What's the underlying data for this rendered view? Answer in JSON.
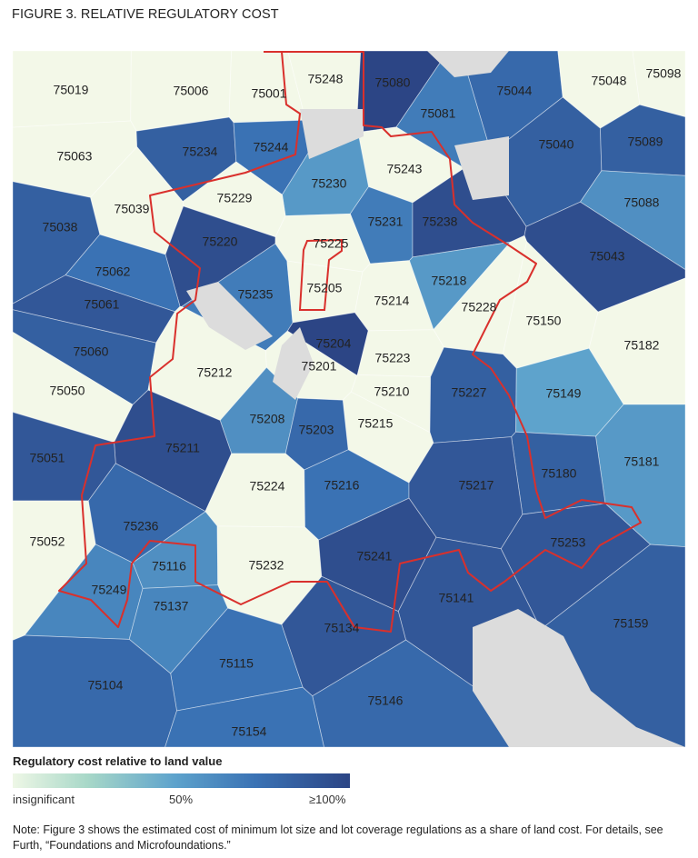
{
  "title": "FIGURE 3. RELATIVE REGULATORY COST",
  "colors": {
    "insignificant": "#f3f8e8",
    "mid": "#5ea3cc",
    "max": "#2c4585",
    "boundary": "#d9302c",
    "unmapped": "#dcdcdc"
  },
  "zips": [
    {
      "zip": "75019",
      "level": 0
    },
    {
      "zip": "75006",
      "level": 0
    },
    {
      "zip": "75001",
      "level": 0
    },
    {
      "zip": "75248",
      "level": 0
    },
    {
      "zip": "75080",
      "level": 1
    },
    {
      "zip": "75044",
      "level": 0.8
    },
    {
      "zip": "75048",
      "level": 0
    },
    {
      "zip": "75098",
      "level": 0
    },
    {
      "zip": "75081",
      "level": 0.7
    },
    {
      "zip": "75040",
      "level": 0.85
    },
    {
      "zip": "75089",
      "level": 0.85
    },
    {
      "zip": "75063",
      "level": 0
    },
    {
      "zip": "75234",
      "level": 0.85
    },
    {
      "zip": "75244",
      "level": 0.75
    },
    {
      "zip": "75243",
      "level": 0
    },
    {
      "zip": "75230",
      "level": 0.55
    },
    {
      "zip": "75229",
      "level": 0
    },
    {
      "zip": "75039",
      "level": 0
    },
    {
      "zip": "75038",
      "level": 0.85
    },
    {
      "zip": "75231",
      "level": 0.7
    },
    {
      "zip": "75238",
      "level": 0.95
    },
    {
      "zip": "75088",
      "level": 0.6
    },
    {
      "zip": "75220",
      "level": 0.95
    },
    {
      "zip": "75225",
      "level": 0
    },
    {
      "zip": "75043",
      "level": 0.95
    },
    {
      "zip": "75062",
      "level": 0.75
    },
    {
      "zip": "75235",
      "level": 0.7
    },
    {
      "zip": "75205",
      "level": 0
    },
    {
      "zip": "75214",
      "level": 0
    },
    {
      "zip": "75218",
      "level": 0.55
    },
    {
      "zip": "75228",
      "level": 0
    },
    {
      "zip": "75150",
      "level": 0
    },
    {
      "zip": "75061",
      "level": 0.9
    },
    {
      "zip": "75204",
      "level": 1
    },
    {
      "zip": "75182",
      "level": 0
    },
    {
      "zip": "75060",
      "level": 0.85
    },
    {
      "zip": "75201",
      "level": 0
    },
    {
      "zip": "75223",
      "level": 0
    },
    {
      "zip": "75212",
      "level": 0
    },
    {
      "zip": "75050",
      "level": 0
    },
    {
      "zip": "75210",
      "level": 0
    },
    {
      "zip": "75227",
      "level": 0.85
    },
    {
      "zip": "75149",
      "level": 0.5
    },
    {
      "zip": "75208",
      "level": 0.6
    },
    {
      "zip": "75215",
      "level": 0
    },
    {
      "zip": "75203",
      "level": 0.8
    },
    {
      "zip": "75211",
      "level": 0.95
    },
    {
      "zip": "75051",
      "level": 0.9
    },
    {
      "zip": "75181",
      "level": 0.55
    },
    {
      "zip": "75180",
      "level": 0.85
    },
    {
      "zip": "75224",
      "level": 0
    },
    {
      "zip": "75216",
      "level": 0.75
    },
    {
      "zip": "75217",
      "level": 0.9
    },
    {
      "zip": "75052",
      "level": 0
    },
    {
      "zip": "75236",
      "level": 0.8
    },
    {
      "zip": "75253",
      "level": 0.9
    },
    {
      "zip": "75116",
      "level": 0.6
    },
    {
      "zip": "75232",
      "level": 0
    },
    {
      "zip": "75241",
      "level": 0.95
    },
    {
      "zip": "75249",
      "level": 0.65
    },
    {
      "zip": "75137",
      "level": 0.65
    },
    {
      "zip": "75141",
      "level": 0.9
    },
    {
      "zip": "75134",
      "level": 0.9
    },
    {
      "zip": "75159",
      "level": 0.85
    },
    {
      "zip": "75115",
      "level": 0.75
    },
    {
      "zip": "75104",
      "level": 0.8
    },
    {
      "zip": "75146",
      "level": 0.8
    },
    {
      "zip": "75154",
      "level": 0.75
    }
  ],
  "legend": {
    "title": "Regulatory cost relative to land value",
    "min_label": "insignificant",
    "mid_label": "50%",
    "max_label": "≥100%"
  },
  "note": "Note: Figure 3 shows the estimated cost of minimum lot size and lot coverage regulations as a share of land cost. For details, see Furth, “Foundations and Microfoundations.”"
}
